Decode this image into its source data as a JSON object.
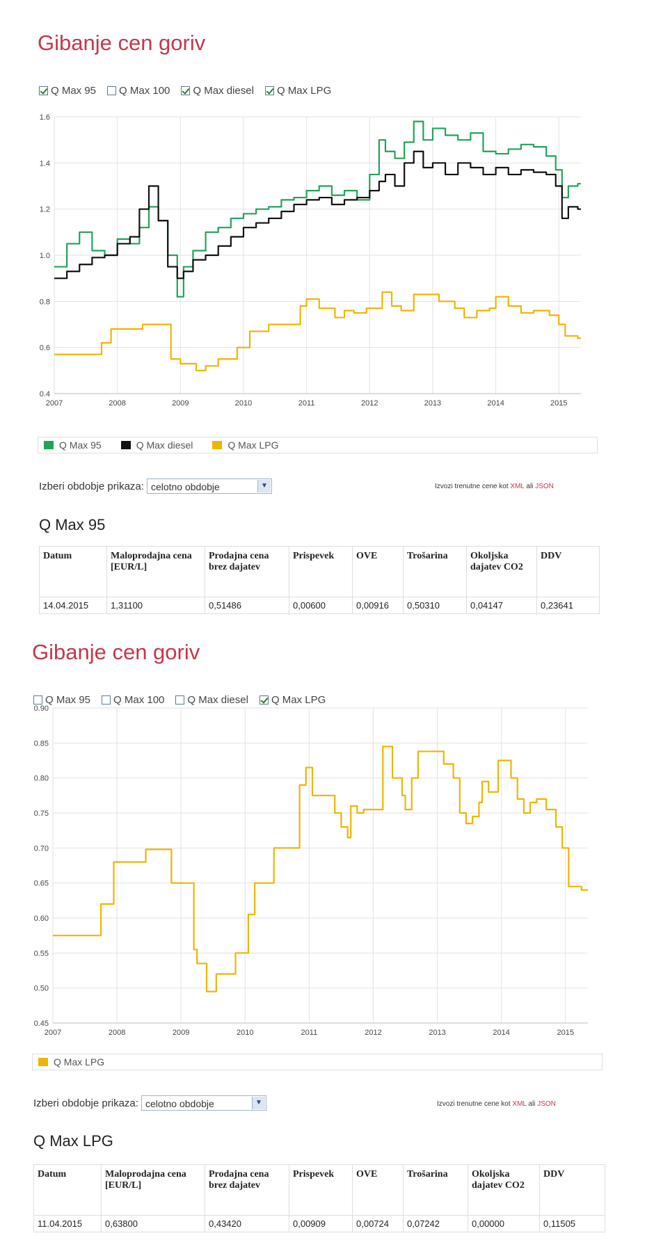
{
  "panel1": {
    "title": "Gibanje cen goriv",
    "checkboxes": [
      {
        "label": "Q Max 95",
        "checked": true
      },
      {
        "label": "Q Max 100",
        "checked": false
      },
      {
        "label": "Q Max diesel",
        "checked": true
      },
      {
        "label": "Q Max LPG",
        "checked": true
      }
    ],
    "legend": [
      {
        "label": "Q Max 95",
        "color": "#21a35a"
      },
      {
        "label": "Q Max diesel",
        "color": "#111111"
      },
      {
        "label": "Q Max LPG",
        "color": "#f0b400"
      }
    ],
    "period_label": "Izberi obdobje prikaza:",
    "period_value": "celotno obdobje",
    "export_text": "Izvozi trenutne cene kot",
    "export_xml": "XML",
    "export_or": "ali",
    "export_json": "JSON",
    "table_title": "Q Max 95",
    "table_headers": [
      "Datum",
      "Maloprodajna cena [EUR/L]",
      "Prodajna cena brez dajatev",
      "Prispevek",
      "OVE",
      "Trošarina",
      "Okoljska dajatev CO2",
      "DDV"
    ],
    "table_row": [
      "14.04.2015",
      "1,31100",
      "0,51486",
      "0,00600",
      "0,00916",
      "0,50310",
      "0,04147",
      "0,23641"
    ]
  },
  "panel2": {
    "title": "Gibanje cen goriv",
    "checkboxes": [
      {
        "label": "Q Max 95",
        "checked": false
      },
      {
        "label": "Q Max 100",
        "checked": false
      },
      {
        "label": "Q Max diesel",
        "checked": false
      },
      {
        "label": "Q Max LPG",
        "checked": true
      }
    ],
    "legend": [
      {
        "label": "Q Max LPG",
        "color": "#f0b400"
      }
    ],
    "period_label": "Izberi obdobje prikaza:",
    "period_value": "celotno obdobje",
    "export_text": "Izvozi trenutne cene kot",
    "export_xml": "XML",
    "export_or": "ali",
    "export_json": "JSON",
    "table_title": "Q Max LPG",
    "table_headers": [
      "Datum",
      "Maloprodajna cena [EUR/L]",
      "Prodajna cena brez dajatev",
      "Prispevek",
      "OVE",
      "Trošarina",
      "Okoljska dajatev CO2",
      "DDV"
    ],
    "table_row": [
      "11.04.2015",
      "0,63800",
      "0,43420",
      "0,00909",
      "0,00724",
      "0,07242",
      "0,00000",
      "0,11505"
    ]
  },
  "chart_data": [
    {
      "type": "line",
      "xlim": [
        2007,
        2015.35
      ],
      "ylim": [
        0.4,
        1.6
      ],
      "xticks": [
        2007,
        2008,
        2009,
        2010,
        2011,
        2012,
        2013,
        2014,
        2015
      ],
      "yticks": [
        0.4,
        0.6,
        0.8,
        1.0,
        1.2,
        1.4,
        1.6
      ],
      "ytick_labels": [
        "0.4",
        "0.6",
        "0.8",
        "1.0",
        "1.2",
        "1.4",
        "1.6"
      ],
      "grid": true,
      "legend_position": "bottom",
      "series": [
        {
          "name": "Q Max 95",
          "color": "#21a35a",
          "step": true,
          "x": [
            2007.0,
            2007.2,
            2007.4,
            2007.6,
            2007.8,
            2008.0,
            2008.2,
            2008.35,
            2008.5,
            2008.65,
            2008.8,
            2008.95,
            2009.05,
            2009.2,
            2009.4,
            2009.6,
            2009.8,
            2010.0,
            2010.2,
            2010.4,
            2010.6,
            2010.8,
            2011.0,
            2011.2,
            2011.4,
            2011.6,
            2011.8,
            2012.0,
            2012.15,
            2012.25,
            2012.4,
            2012.55,
            2012.7,
            2012.85,
            2013.0,
            2013.2,
            2013.4,
            2013.6,
            2013.8,
            2014.0,
            2014.2,
            2014.4,
            2014.6,
            2014.8,
            2014.95,
            2015.05,
            2015.15,
            2015.3
          ],
          "y": [
            0.95,
            1.05,
            1.1,
            1.02,
            1.0,
            1.07,
            1.05,
            1.12,
            1.21,
            1.15,
            1.0,
            0.82,
            0.95,
            1.02,
            1.1,
            1.12,
            1.16,
            1.18,
            1.2,
            1.21,
            1.24,
            1.25,
            1.28,
            1.3,
            1.26,
            1.28,
            1.24,
            1.35,
            1.5,
            1.45,
            1.42,
            1.49,
            1.58,
            1.5,
            1.55,
            1.52,
            1.5,
            1.53,
            1.45,
            1.44,
            1.46,
            1.48,
            1.47,
            1.43,
            1.37,
            1.25,
            1.3,
            1.31
          ]
        },
        {
          "name": "Q Max diesel",
          "color": "#111111",
          "step": true,
          "x": [
            2007.0,
            2007.2,
            2007.4,
            2007.6,
            2007.8,
            2008.0,
            2008.2,
            2008.35,
            2008.5,
            2008.65,
            2008.8,
            2008.95,
            2009.05,
            2009.2,
            2009.4,
            2009.6,
            2009.8,
            2010.0,
            2010.2,
            2010.4,
            2010.6,
            2010.8,
            2011.0,
            2011.2,
            2011.4,
            2011.6,
            2011.8,
            2012.0,
            2012.15,
            2012.25,
            2012.4,
            2012.55,
            2012.7,
            2012.85,
            2013.0,
            2013.2,
            2013.4,
            2013.6,
            2013.8,
            2014.0,
            2014.2,
            2014.4,
            2014.6,
            2014.8,
            2014.95,
            2015.05,
            2015.15,
            2015.3
          ],
          "y": [
            0.9,
            0.93,
            0.96,
            0.99,
            1.0,
            1.05,
            1.08,
            1.2,
            1.3,
            1.15,
            0.95,
            0.9,
            0.93,
            0.98,
            1.0,
            1.04,
            1.08,
            1.12,
            1.14,
            1.16,
            1.19,
            1.22,
            1.24,
            1.25,
            1.22,
            1.24,
            1.25,
            1.28,
            1.32,
            1.35,
            1.3,
            1.4,
            1.45,
            1.38,
            1.4,
            1.35,
            1.4,
            1.38,
            1.35,
            1.38,
            1.35,
            1.37,
            1.36,
            1.35,
            1.3,
            1.16,
            1.21,
            1.2
          ]
        },
        {
          "name": "Q Max LPG",
          "color": "#f0b400",
          "step": true,
          "x": [
            2007.0,
            2007.75,
            2007.9,
            2008.4,
            2008.85,
            2009.0,
            2009.25,
            2009.4,
            2009.6,
            2009.9,
            2010.1,
            2010.4,
            2010.9,
            2011.0,
            2011.2,
            2011.45,
            2011.6,
            2011.75,
            2011.95,
            2012.2,
            2012.35,
            2012.5,
            2012.7,
            2012.9,
            2013.1,
            2013.35,
            2013.5,
            2013.7,
            2013.9,
            2014.0,
            2014.2,
            2014.4,
            2014.6,
            2014.85,
            2015.0,
            2015.1,
            2015.3
          ],
          "y": [
            0.57,
            0.62,
            0.68,
            0.7,
            0.55,
            0.53,
            0.5,
            0.52,
            0.55,
            0.6,
            0.67,
            0.7,
            0.78,
            0.81,
            0.77,
            0.73,
            0.76,
            0.75,
            0.77,
            0.84,
            0.78,
            0.76,
            0.83,
            0.83,
            0.8,
            0.77,
            0.73,
            0.76,
            0.77,
            0.82,
            0.78,
            0.75,
            0.76,
            0.74,
            0.7,
            0.65,
            0.64
          ]
        }
      ]
    },
    {
      "type": "line",
      "xlim": [
        2007,
        2015.35
      ],
      "ylim": [
        0.45,
        0.9
      ],
      "xticks": [
        2007,
        2008,
        2009,
        2010,
        2011,
        2012,
        2013,
        2014,
        2015
      ],
      "yticks": [
        0.45,
        0.5,
        0.55,
        0.6,
        0.65,
        0.7,
        0.75,
        0.8,
        0.85,
        0.9
      ],
      "ytick_labels": [
        "0.45",
        "0.50",
        "0.55",
        "0.60",
        "0.65",
        "0.70",
        "0.75",
        "0.80",
        "0.85",
        "0.90"
      ],
      "grid": true,
      "legend_position": "bottom",
      "series": [
        {
          "name": "Q Max LPG",
          "color": "#f0b400",
          "step": true,
          "x": [
            2007.0,
            2007.75,
            2007.95,
            2008.45,
            2008.85,
            2009.2,
            2009.25,
            2009.4,
            2009.55,
            2009.85,
            2010.05,
            2010.15,
            2010.45,
            2010.85,
            2010.95,
            2011.05,
            2011.15,
            2011.4,
            2011.5,
            2011.6,
            2011.65,
            2011.75,
            2011.85,
            2012.0,
            2012.15,
            2012.3,
            2012.45,
            2012.5,
            2012.6,
            2012.7,
            2012.9,
            2013.1,
            2013.25,
            2013.35,
            2013.45,
            2013.55,
            2013.65,
            2013.7,
            2013.8,
            2013.95,
            2014.15,
            2014.25,
            2014.35,
            2014.45,
            2014.55,
            2014.7,
            2014.85,
            2014.95,
            2015.05,
            2015.25
          ],
          "y": [
            0.575,
            0.62,
            0.68,
            0.698,
            0.65,
            0.555,
            0.535,
            0.495,
            0.52,
            0.55,
            0.605,
            0.65,
            0.7,
            0.79,
            0.815,
            0.775,
            0.775,
            0.75,
            0.73,
            0.715,
            0.76,
            0.75,
            0.755,
            0.755,
            0.845,
            0.8,
            0.775,
            0.755,
            0.8,
            0.838,
            0.838,
            0.82,
            0.8,
            0.75,
            0.735,
            0.745,
            0.765,
            0.795,
            0.78,
            0.825,
            0.8,
            0.77,
            0.75,
            0.765,
            0.77,
            0.755,
            0.73,
            0.7,
            0.645,
            0.64
          ]
        }
      ]
    }
  ]
}
